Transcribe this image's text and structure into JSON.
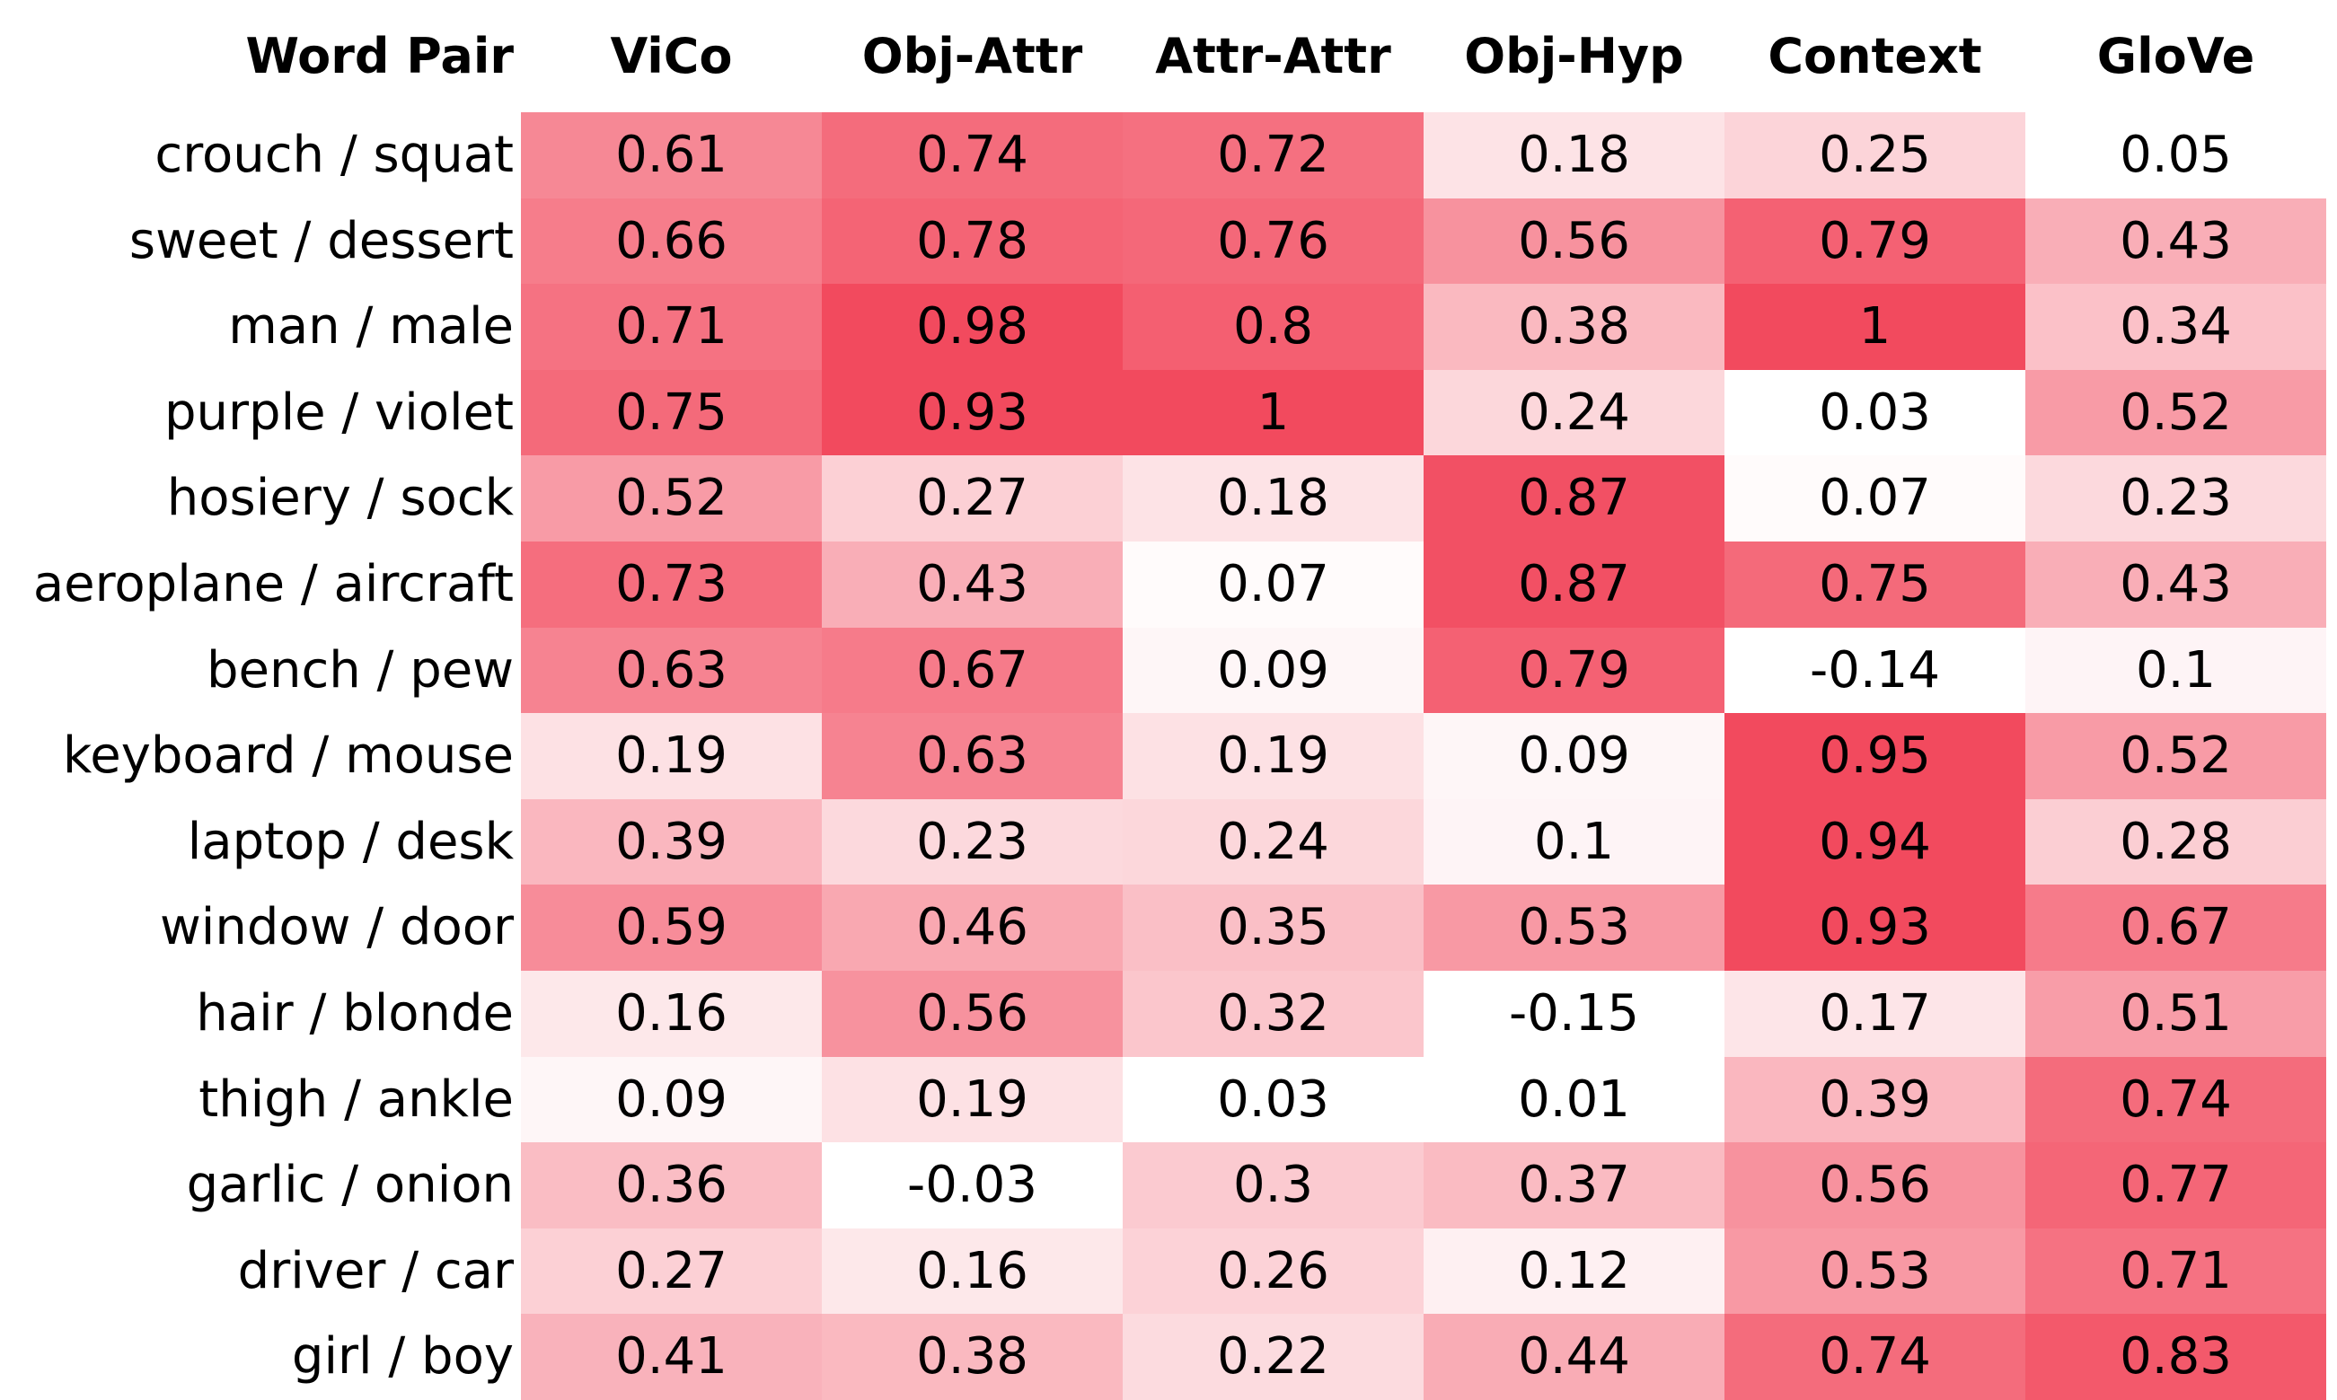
{
  "chart_data": {
    "type": "heatmap",
    "row_header": "Word Pair",
    "columns": [
      "ViCo",
      "Obj-Attr",
      "Attr-Attr",
      "Obj-Hyp",
      "Context",
      "GloVe"
    ],
    "rows": [
      "crouch / squat",
      "sweet / dessert",
      "man / male",
      "purple / violet",
      "hosiery / sock",
      "aeroplane / aircraft",
      "bench / pew",
      "keyboard / mouse",
      "laptop / desk",
      "window / door",
      "hair / blonde",
      "thigh / ankle",
      "garlic / onion",
      "driver / car",
      "girl / boy"
    ],
    "values": [
      [
        0.61,
        0.74,
        0.72,
        0.18,
        0.25,
        0.05
      ],
      [
        0.66,
        0.78,
        0.76,
        0.56,
        0.79,
        0.43
      ],
      [
        0.71,
        0.98,
        0.8,
        0.38,
        1,
        0.34
      ],
      [
        0.75,
        0.93,
        1,
        0.24,
        0.03,
        0.52
      ],
      [
        0.52,
        0.27,
        0.18,
        0.87,
        0.07,
        0.23
      ],
      [
        0.73,
        0.43,
        0.07,
        0.87,
        0.75,
        0.43
      ],
      [
        0.63,
        0.67,
        0.09,
        0.79,
        -0.14,
        0.1
      ],
      [
        0.19,
        0.63,
        0.19,
        0.09,
        0.95,
        0.52
      ],
      [
        0.39,
        0.23,
        0.24,
        0.1,
        0.94,
        0.28
      ],
      [
        0.59,
        0.46,
        0.35,
        0.53,
        0.93,
        0.67
      ],
      [
        0.16,
        0.56,
        0.32,
        -0.15,
        0.17,
        0.51
      ],
      [
        0.09,
        0.19,
        0.03,
        0.01,
        0.39,
        0.74
      ],
      [
        0.36,
        -0.03,
        0.3,
        0.37,
        0.56,
        0.77
      ],
      [
        0.27,
        0.16,
        0.26,
        0.12,
        0.53,
        0.71
      ],
      [
        0.41,
        0.38,
        0.22,
        0.44,
        0.74,
        0.83
      ]
    ],
    "color_low": "#ffffff",
    "color_high": "#f24a5e"
  }
}
